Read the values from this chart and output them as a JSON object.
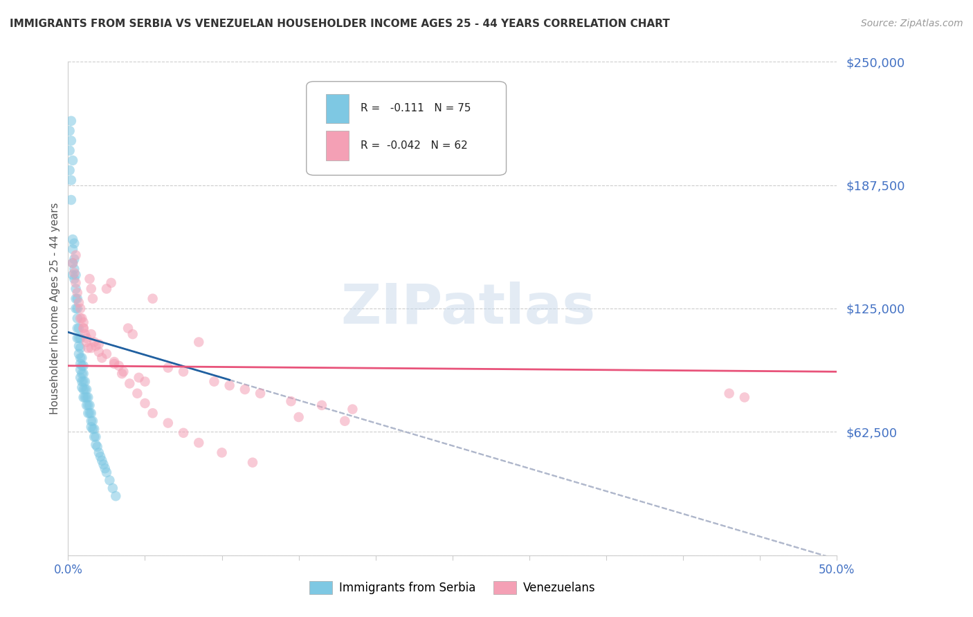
{
  "title": "IMMIGRANTS FROM SERBIA VS VENEZUELAN HOUSEHOLDER INCOME AGES 25 - 44 YEARS CORRELATION CHART",
  "source": "Source: ZipAtlas.com",
  "ylabel": "Householder Income Ages 25 - 44 years",
  "xlim": [
    0.0,
    0.5
  ],
  "ylim": [
    0,
    250000
  ],
  "yticks": [
    0,
    62500,
    125000,
    187500,
    250000
  ],
  "ytick_labels": [
    "",
    "$62,500",
    "$125,000",
    "$187,500",
    "$250,000"
  ],
  "xticks": [
    0.0,
    0.05,
    0.1,
    0.15,
    0.2,
    0.25,
    0.3,
    0.35,
    0.4,
    0.45,
    0.5
  ],
  "xtick_labels_show": [
    "0.0%",
    "",
    "",
    "",
    "",
    "",
    "",
    "",
    "",
    "",
    "50.0%"
  ],
  "serbia_R": -0.111,
  "serbia_N": 75,
  "venezuela_R": -0.042,
  "venezuela_N": 62,
  "serbia_color": "#7ec8e3",
  "venezuela_color": "#f4a0b5",
  "serbia_line_color": "#2060a0",
  "venezuela_line_color": "#e8537a",
  "dashed_line_color": "#b0b8cc",
  "watermark_color": "#c8d8ea",
  "bg_color": "#ffffff",
  "serbia_x": [
    0.001,
    0.001,
    0.002,
    0.002,
    0.002,
    0.003,
    0.003,
    0.003,
    0.003,
    0.004,
    0.004,
    0.004,
    0.004,
    0.005,
    0.005,
    0.005,
    0.005,
    0.006,
    0.006,
    0.006,
    0.006,
    0.006,
    0.007,
    0.007,
    0.007,
    0.007,
    0.008,
    0.008,
    0.008,
    0.008,
    0.008,
    0.008,
    0.009,
    0.009,
    0.009,
    0.009,
    0.009,
    0.01,
    0.01,
    0.01,
    0.01,
    0.01,
    0.011,
    0.011,
    0.011,
    0.012,
    0.012,
    0.012,
    0.013,
    0.013,
    0.013,
    0.014,
    0.014,
    0.015,
    0.015,
    0.015,
    0.016,
    0.016,
    0.017,
    0.017,
    0.018,
    0.018,
    0.019,
    0.02,
    0.021,
    0.022,
    0.023,
    0.024,
    0.025,
    0.027,
    0.029,
    0.031,
    0.002,
    0.003,
    0.001
  ],
  "serbia_y": [
    205000,
    195000,
    210000,
    190000,
    180000,
    160000,
    155000,
    148000,
    142000,
    158000,
    150000,
    145000,
    140000,
    142000,
    135000,
    130000,
    125000,
    130000,
    125000,
    120000,
    115000,
    110000,
    115000,
    110000,
    106000,
    102000,
    110000,
    105000,
    100000,
    97000,
    94000,
    90000,
    100000,
    96000,
    92000,
    88000,
    85000,
    96000,
    92000,
    88000,
    84000,
    80000,
    88000,
    84000,
    80000,
    84000,
    80000,
    76000,
    80000,
    76000,
    72000,
    76000,
    72000,
    72000,
    68000,
    65000,
    68000,
    64000,
    64000,
    60000,
    60000,
    56000,
    55000,
    52000,
    50000,
    48000,
    46000,
    44000,
    42000,
    38000,
    34000,
    30000,
    220000,
    200000,
    215000
  ],
  "venezuela_x": [
    0.003,
    0.004,
    0.005,
    0.006,
    0.007,
    0.008,
    0.009,
    0.01,
    0.011,
    0.012,
    0.013,
    0.014,
    0.015,
    0.016,
    0.017,
    0.018,
    0.02,
    0.022,
    0.025,
    0.028,
    0.03,
    0.033,
    0.036,
    0.039,
    0.042,
    0.046,
    0.05,
    0.055,
    0.065,
    0.075,
    0.085,
    0.095,
    0.105,
    0.115,
    0.125,
    0.145,
    0.165,
    0.185,
    0.01,
    0.015,
    0.02,
    0.025,
    0.03,
    0.035,
    0.04,
    0.045,
    0.05,
    0.055,
    0.065,
    0.075,
    0.085,
    0.1,
    0.12,
    0.15,
    0.18,
    0.43,
    0.44,
    0.005,
    0.008,
    0.01,
    0.012,
    0.015
  ],
  "venezuela_y": [
    148000,
    143000,
    138000,
    133000,
    128000,
    125000,
    120000,
    115000,
    112000,
    108000,
    105000,
    140000,
    135000,
    130000,
    108000,
    106000,
    103000,
    100000,
    135000,
    138000,
    98000,
    96000,
    93000,
    115000,
    112000,
    90000,
    88000,
    130000,
    95000,
    93000,
    108000,
    88000,
    86000,
    84000,
    82000,
    78000,
    76000,
    74000,
    118000,
    112000,
    107000,
    102000,
    97000,
    92000,
    87000,
    82000,
    77000,
    72000,
    67000,
    62000,
    57000,
    52000,
    47000,
    70000,
    68000,
    82000,
    80000,
    152000,
    120000,
    115000,
    110000,
    105000
  ]
}
